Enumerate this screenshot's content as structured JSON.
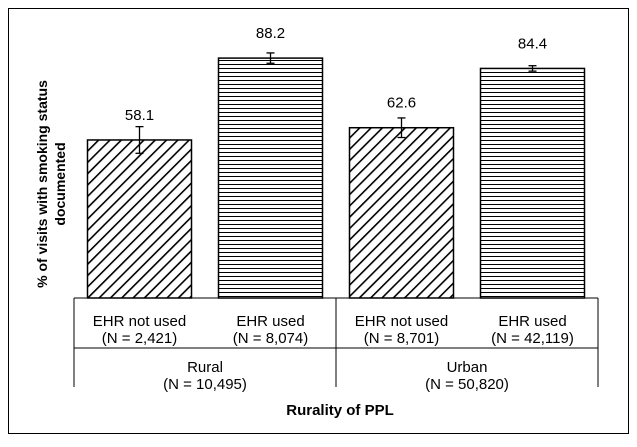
{
  "chart_data": {
    "type": "bar",
    "ylabel": "% of visits with smoking status documented",
    "xlabel": "Rurality of PPL",
    "ylim": [
      0,
      100
    ],
    "grid": false,
    "groups": [
      {
        "label": "Rural",
        "n_label": "(N = 10,495)",
        "bars": [
          {
            "label": "EHR not used",
            "n_label": "(N = 2,421)",
            "value": 58.1,
            "value_label": "58.1",
            "error": [
              53.2,
              63.0
            ],
            "pattern": "diagonal"
          },
          {
            "label": "EHR used",
            "n_label": "(N = 8,074)",
            "value": 88.2,
            "value_label": "88.2",
            "error": [
              86.3,
              90.1
            ],
            "pattern": "horizontal"
          }
        ]
      },
      {
        "label": "Urban",
        "n_label": "(N = 50,820)",
        "bars": [
          {
            "label": "EHR not used",
            "n_label": "(N = 8,701)",
            "value": 62.6,
            "value_label": "62.6",
            "error": [
              59.0,
              66.2
            ],
            "pattern": "diagonal"
          },
          {
            "label": "EHR used",
            "n_label": "(N = 42,119)",
            "value": 84.4,
            "value_label": "84.4",
            "error": [
              83.4,
              85.4
            ],
            "pattern": "horizontal"
          }
        ]
      }
    ]
  }
}
